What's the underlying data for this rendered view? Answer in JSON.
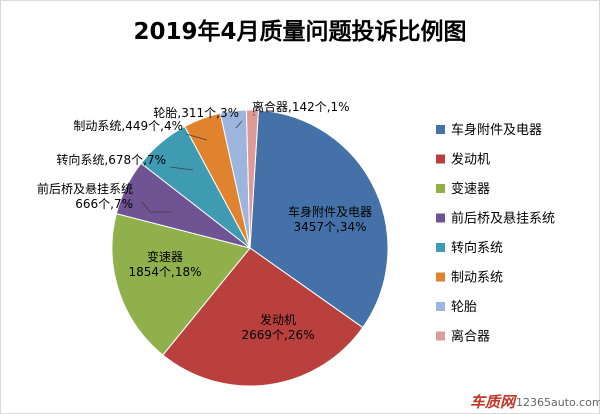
{
  "title": "2019年4月质量问题投诉比例图",
  "chart_data": {
    "type": "pie",
    "title": "2019年4月质量问题投诉比例图",
    "legend_position": "right",
    "slices": [
      {
        "name": "车身附件及电器",
        "value": 3457,
        "label": "车身附件及电器\n3457个,34%",
        "color": "#4472a8"
      },
      {
        "name": "发动机",
        "value": 2669,
        "label": "发动机\n2669个,26%",
        "color": "#b9403d"
      },
      {
        "name": "变速器",
        "value": 1854,
        "label": "变速器\n1854个,18%",
        "color": "#8fb04a"
      },
      {
        "name": "前后桥及悬挂系统",
        "value": 666,
        "label": "前后桥及悬挂系统\n666个,7%",
        "color": "#6f5393"
      },
      {
        "name": "转向系统",
        "value": 678,
        "label": "转向系统,678个,7%",
        "color": "#3e9bb2"
      },
      {
        "name": "制动系统",
        "value": 449,
        "label": "制动系统,449个,4%",
        "color": "#e1822f"
      },
      {
        "name": "轮胎",
        "value": 311,
        "label": "轮胎,311个,3%",
        "color": "#9bb5de"
      },
      {
        "name": "离合器",
        "value": 142,
        "label": "离合器,142个,1%",
        "color": "#de9a98"
      }
    ]
  },
  "watermark": {
    "logo": "车质网",
    "site": "12365auto.com"
  }
}
